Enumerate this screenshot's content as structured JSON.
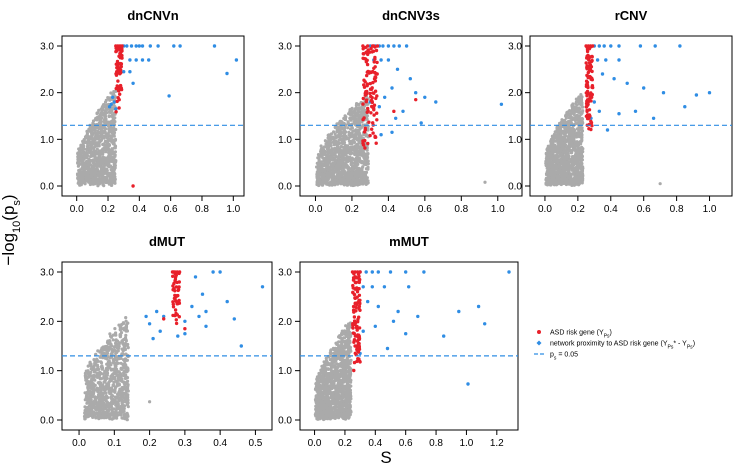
{
  "figure": {
    "ylabel": "-log10(ps)",
    "xlabel": "S"
  },
  "colors": {
    "background_points": "#aaaaaa",
    "asd_risk": "#e8202a",
    "network": "#2f8de4",
    "threshold_line": "#2f8de4"
  },
  "legend": {
    "position": "right-middle",
    "items": [
      {
        "label": "ASD risk gene (Y",
        "sub": "Ps",
        "tail": ")",
        "kind": "asd"
      },
      {
        "label": "network proximity to ASD risk gene (Y",
        "sub": "Ps",
        "tail": "* - Y",
        "sub2": "Ps",
        "tail2": ")",
        "kind": "network"
      },
      {
        "label": "p",
        "sub": "s",
        "tail": " = 0.05",
        "kind": "line"
      }
    ]
  },
  "chart_data": [
    {
      "type": "scatter",
      "title": "dnCNVn",
      "xticks": [
        "0.0",
        "0.2",
        "0.4",
        "0.6",
        "0.8",
        "1.0"
      ],
      "xtick_values": [
        0,
        0.2,
        0.4,
        0.6,
        0.8,
        1.0
      ],
      "xlim": [
        -0.03,
        1.03
      ],
      "yticks": [
        "0.0",
        "1.0",
        "2.0",
        "3.0"
      ],
      "ytick_values": [
        0,
        1,
        2,
        3
      ],
      "ylim": [
        0,
        3
      ],
      "threshold": 1.3,
      "cloud": {
        "x_max": 0.28,
        "y_top": 2.25,
        "y_base": 0.1,
        "n": 1000
      },
      "asd_points": {
        "x_range": [
          0.25,
          0.29
        ],
        "y_range": [
          1.55,
          3.0
        ],
        "n": 60
      },
      "network_points": [
        [
          0.22,
          1.75
        ],
        [
          0.24,
          1.8
        ],
        [
          0.25,
          1.65
        ],
        [
          0.23,
          1.9
        ],
        [
          0.21,
          1.7
        ],
        [
          0.3,
          3
        ],
        [
          0.32,
          3
        ],
        [
          0.35,
          3
        ],
        [
          0.38,
          3
        ],
        [
          0.4,
          3
        ],
        [
          0.42,
          3
        ],
        [
          0.47,
          3
        ],
        [
          0.52,
          3
        ],
        [
          0.62,
          3
        ],
        [
          0.66,
          3
        ],
        [
          0.88,
          3
        ],
        [
          0.34,
          2.7
        ],
        [
          0.38,
          2.7
        ],
        [
          0.42,
          2.7
        ],
        [
          0.46,
          2.7
        ],
        [
          0.3,
          2.45
        ],
        [
          0.34,
          2.45
        ],
        [
          0.36,
          2.2
        ],
        [
          0.59,
          1.93
        ],
        [
          0.96,
          2.41
        ],
        [
          1.02,
          2.7
        ]
      ],
      "extra_asd": [
        [
          0.36,
          0.0
        ]
      ],
      "extra_gray": []
    },
    {
      "type": "scatter",
      "title": "dnCNV3s",
      "xticks": [
        "0.0",
        "0.2",
        "0.4",
        "0.6",
        "0.8",
        "1.0"
      ],
      "xtick_values": [
        0,
        0.2,
        0.4,
        0.6,
        0.8,
        1.0
      ],
      "xlim": [
        -0.03,
        1.1
      ],
      "yticks": [
        "0.0",
        "1.0",
        "2.0",
        "3.0"
      ],
      "ytick_values": [
        0,
        1,
        2,
        3
      ],
      "ylim": [
        0,
        3
      ],
      "threshold": 1.3,
      "cloud": {
        "x_max": 0.32,
        "y_top": 2.1,
        "y_base": 0.1,
        "n": 1200
      },
      "asd_points": {
        "x_range": [
          0.26,
          0.34
        ],
        "y_range": [
          0.8,
          3.0
        ],
        "n": 110
      },
      "network_points": [
        [
          0.3,
          3
        ],
        [
          0.33,
          3
        ],
        [
          0.35,
          3
        ],
        [
          0.37,
          3
        ],
        [
          0.4,
          3
        ],
        [
          0.43,
          3
        ],
        [
          0.46,
          3
        ],
        [
          0.5,
          3
        ],
        [
          0.32,
          2.7
        ],
        [
          0.36,
          2.7
        ],
        [
          0.4,
          2.7
        ],
        [
          0.45,
          2.5
        ],
        [
          0.52,
          2.3
        ],
        [
          0.55,
          2.0
        ],
        [
          0.6,
          1.9
        ],
        [
          0.66,
          1.8
        ],
        [
          0.42,
          2.1
        ],
        [
          0.38,
          1.9
        ],
        [
          0.48,
          1.6
        ],
        [
          0.35,
          1.7
        ],
        [
          0.3,
          1.8
        ],
        [
          0.28,
          2.0
        ],
        [
          0.44,
          1.45
        ],
        [
          0.58,
          1.35
        ],
        [
          1.02,
          1.75
        ],
        [
          0.42,
          1.15
        ],
        [
          0.36,
          1.1
        ]
      ],
      "extra_asd": [
        [
          0.55,
          1.85
        ],
        [
          0.43,
          1.6
        ]
      ],
      "extra_gray": [
        [
          0.93,
          0.08
        ]
      ]
    },
    {
      "type": "scatter",
      "title": "rCNV",
      "xticks": [
        "0.0",
        "0.2",
        "0.4",
        "0.6",
        "0.8",
        "1.0"
      ],
      "xtick_values": [
        0,
        0.2,
        0.4,
        0.6,
        0.8,
        1.0
      ],
      "xlim": [
        -0.03,
        1.1
      ],
      "yticks": [
        "0.0",
        "1.0",
        "2.0",
        "3.0"
      ],
      "ytick_values": [
        0,
        1,
        2,
        3
      ],
      "ylim": [
        0,
        3
      ],
      "threshold": 1.3,
      "cloud": {
        "x_max": 0.26,
        "y_top": 2.2,
        "y_base": 0.1,
        "n": 1200
      },
      "asd_points": {
        "x_range": [
          0.25,
          0.29
        ],
        "y_range": [
          1.2,
          3.0
        ],
        "n": 90
      },
      "network_points": [
        [
          0.3,
          3
        ],
        [
          0.33,
          3
        ],
        [
          0.36,
          3
        ],
        [
          0.4,
          3
        ],
        [
          0.45,
          3
        ],
        [
          0.58,
          3
        ],
        [
          0.67,
          3
        ],
        [
          0.82,
          3
        ],
        [
          0.32,
          2.7
        ],
        [
          0.37,
          2.7
        ],
        [
          0.45,
          2.7
        ],
        [
          0.35,
          2.4
        ],
        [
          0.42,
          2.3
        ],
        [
          0.5,
          2.2
        ],
        [
          0.6,
          2.1
        ],
        [
          0.72,
          2.0
        ],
        [
          0.92,
          1.95
        ],
        [
          0.85,
          1.7
        ],
        [
          0.55,
          1.6
        ],
        [
          0.45,
          1.55
        ],
        [
          0.33,
          1.6
        ],
        [
          0.3,
          1.8
        ],
        [
          0.28,
          1.45
        ],
        [
          0.38,
          1.2
        ],
        [
          1.0,
          2.0
        ],
        [
          0.66,
          1.45
        ]
      ],
      "extra_asd": [],
      "extra_gray": [
        [
          0.7,
          0.05
        ]
      ]
    },
    {
      "type": "scatter",
      "title": "dMUT",
      "xticks": [
        "0.0",
        "0.1",
        "0.2",
        "0.3",
        "0.4",
        "0.5"
      ],
      "xtick_values": [
        0,
        0.1,
        0.2,
        0.3,
        0.4,
        0.5
      ],
      "xlim": [
        -0.02,
        0.53
      ],
      "yticks": [
        "0.0",
        "1.0",
        "2.0",
        "3.0"
      ],
      "ytick_values": [
        0,
        1,
        2,
        3
      ],
      "ylim": [
        0,
        3
      ],
      "threshold": 1.3,
      "cloud": {
        "x_max": 0.16,
        "y_top": 2.3,
        "y_base": 0.1,
        "n": 900
      },
      "asd_points": {
        "x_range": [
          0.265,
          0.285
        ],
        "y_range": [
          1.8,
          3.0
        ],
        "n": 45
      },
      "network_points": [
        [
          0.19,
          2.1
        ],
        [
          0.2,
          1.95
        ],
        [
          0.22,
          2.2
        ],
        [
          0.24,
          2.1
        ],
        [
          0.23,
          1.8
        ],
        [
          0.21,
          1.65
        ],
        [
          0.3,
          2.0
        ],
        [
          0.32,
          2.3
        ],
        [
          0.35,
          2.55
        ],
        [
          0.38,
          3.0
        ],
        [
          0.4,
          3.0
        ],
        [
          0.42,
          2.4
        ],
        [
          0.44,
          2.05
        ],
        [
          0.36,
          1.9
        ],
        [
          0.3,
          1.75
        ],
        [
          0.34,
          2.1
        ],
        [
          0.36,
          2.2
        ],
        [
          0.33,
          2.9
        ],
        [
          0.52,
          2.7
        ],
        [
          0.46,
          1.5
        ],
        [
          0.28,
          1.7
        ]
      ],
      "extra_asd": [
        [
          0.24,
          2.05
        ],
        [
          0.3,
          1.85
        ]
      ],
      "extra_gray": [
        [
          0.2,
          0.37
        ]
      ]
    },
    {
      "type": "scatter",
      "title": "mMUT",
      "xticks": [
        "0.0",
        "0.2",
        "0.4",
        "0.6",
        "0.8",
        "1.0",
        "1.2"
      ],
      "xtick_values": [
        0,
        0.2,
        0.4,
        0.6,
        0.8,
        1.0,
        1.2
      ],
      "xlim": [
        -0.03,
        1.3
      ],
      "yticks": [
        "0.0",
        "1.0",
        "2.0",
        "3.0"
      ],
      "ytick_values": [
        0,
        1,
        2,
        3
      ],
      "ylim": [
        0,
        3
      ],
      "threshold": 1.3,
      "cloud": {
        "x_max": 0.27,
        "y_top": 2.2,
        "y_base": 0.1,
        "n": 1200
      },
      "asd_points": {
        "x_range": [
          0.25,
          0.3
        ],
        "y_range": [
          1.0,
          3.0
        ],
        "n": 110
      },
      "network_points": [
        [
          0.3,
          3
        ],
        [
          0.34,
          3
        ],
        [
          0.38,
          3
        ],
        [
          0.42,
          3
        ],
        [
          0.5,
          3
        ],
        [
          0.6,
          3
        ],
        [
          0.72,
          3
        ],
        [
          1.28,
          3
        ],
        [
          0.32,
          2.7
        ],
        [
          0.38,
          2.7
        ],
        [
          0.46,
          2.7
        ],
        [
          0.62,
          2.7
        ],
        [
          0.35,
          2.4
        ],
        [
          0.42,
          2.3
        ],
        [
          0.55,
          2.2
        ],
        [
          0.68,
          2.1
        ],
        [
          0.52,
          2.0
        ],
        [
          0.4,
          1.9
        ],
        [
          0.32,
          1.8
        ],
        [
          0.6,
          1.75
        ],
        [
          0.85,
          1.7
        ],
        [
          0.95,
          2.2
        ],
        [
          1.08,
          2.3
        ],
        [
          1.12,
          1.95
        ],
        [
          0.28,
          1.5
        ],
        [
          0.48,
          1.45
        ],
        [
          1.01,
          0.73
        ],
        [
          0.3,
          1.35
        ]
      ],
      "extra_asd": [],
      "extra_gray": []
    }
  ]
}
